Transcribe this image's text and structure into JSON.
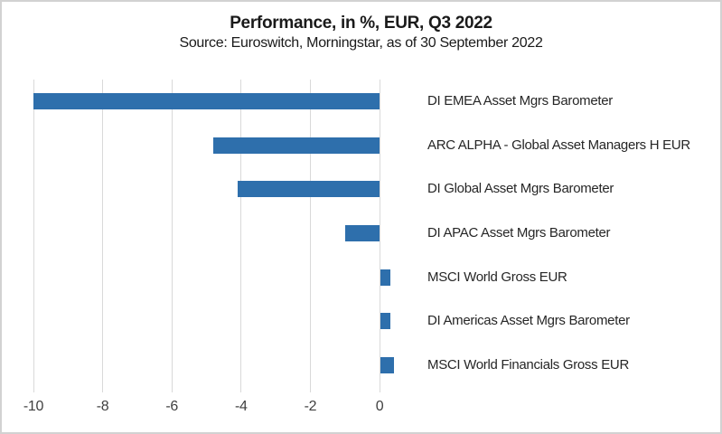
{
  "frame": {
    "border_color": "#d2d2d2",
    "background_color": "#ffffff"
  },
  "chart_data": {
    "type": "bar",
    "orientation": "horizontal",
    "title": "Performance, in %, EUR, Q3 2022",
    "subtitle": "Source: Euroswitch, Morningstar, as of 30 September 2022",
    "categories": [
      "DI EMEA Asset Mgrs Barometer",
      "ARC ALPHA - Global Asset Managers H EUR",
      "DI Global Asset Mgrs Barometer",
      "DI APAC Asset Mgrs Barometer",
      "MSCI World Gross EUR",
      "DI Americas Asset Mgrs Barometer",
      "MSCI World Financials Gross EUR"
    ],
    "values": [
      -10.0,
      -4.8,
      -4.1,
      -1.0,
      0.3,
      0.3,
      0.4
    ],
    "x_ticks": [
      -10,
      -8,
      -6,
      -4,
      -2,
      0
    ],
    "xlim": [
      -10,
      0.9
    ],
    "xlabel": "",
    "ylabel": "",
    "grid": true,
    "legend_position": "none",
    "bar_color": "#2e6fac",
    "gridline_color": "#d9d9d9",
    "title_color": "#1a1a1a",
    "axis_label_color": "#404040",
    "category_label_color": "#262626"
  }
}
